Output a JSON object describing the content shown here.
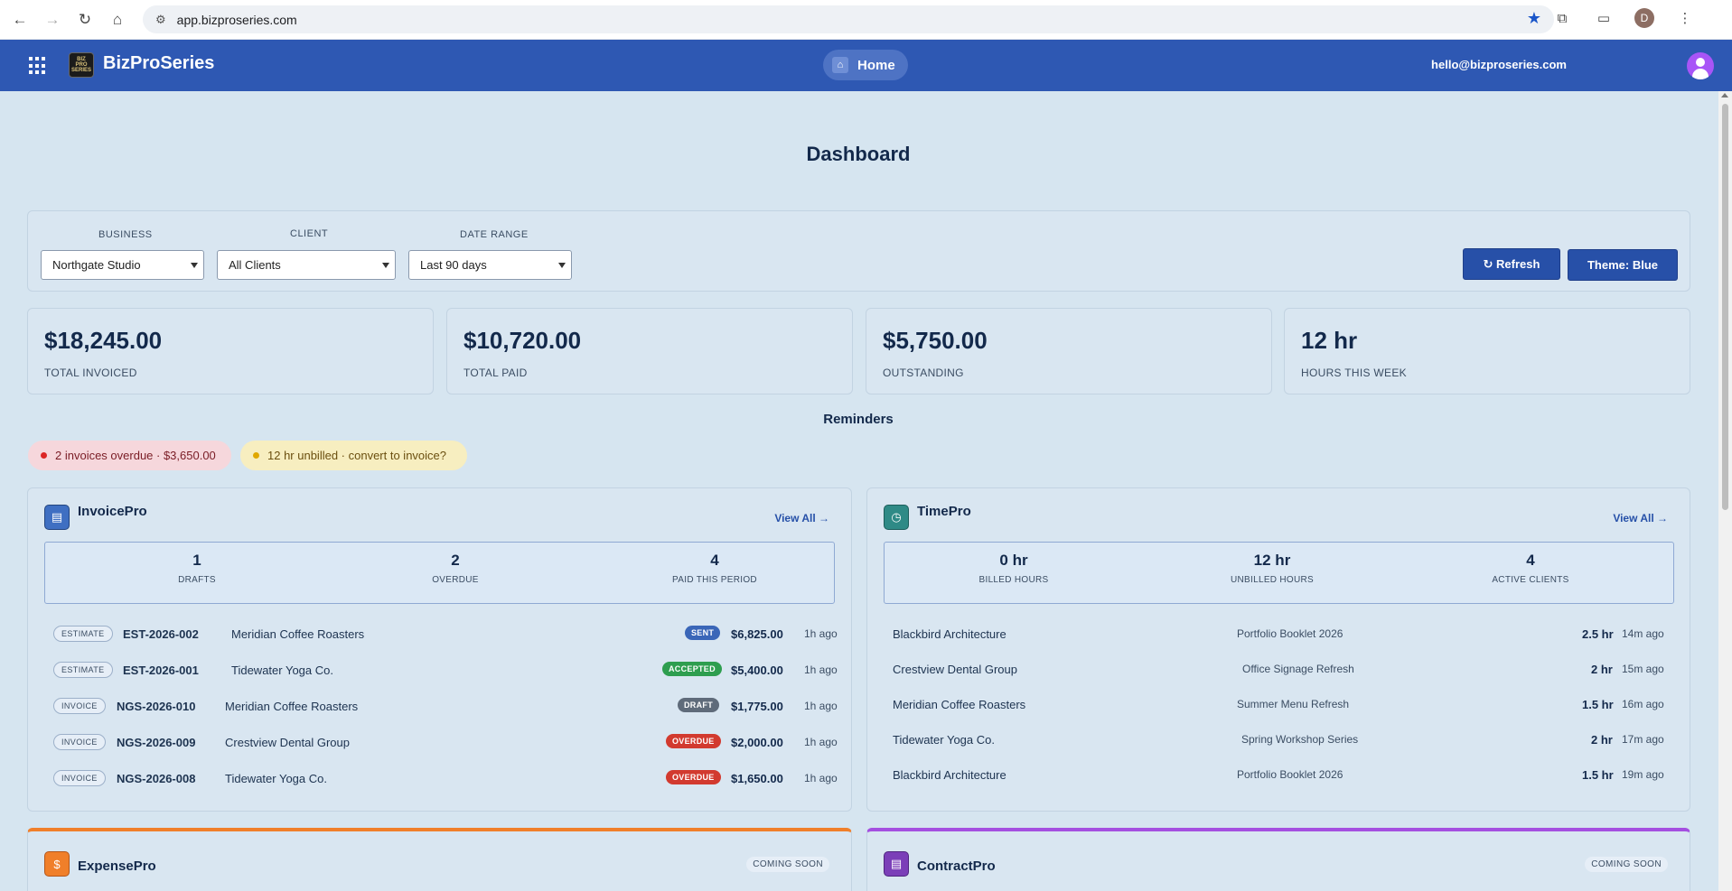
{
  "browser": {
    "url": "app.bizproseries.com",
    "profile_initial": "D"
  },
  "header": {
    "brand": "BizProSeries",
    "logo_text": "BIZ PRO SERIES",
    "home_label": "Home",
    "user_email": "hello@bizproseries.com"
  },
  "page": {
    "title": "Dashboard"
  },
  "filters": {
    "business_label": "BUSINESS",
    "business_value": "Northgate Studio",
    "client_label": "CLIENT",
    "client_value": "All Clients",
    "date_label": "DATE RANGE",
    "date_value": "Last 90 days",
    "refresh_label": "↻ Refresh",
    "theme_label": "Theme: Blue"
  },
  "stats": [
    {
      "value": "$18,245.00",
      "label": "TOTAL INVOICED"
    },
    {
      "value": "$10,720.00",
      "label": "TOTAL PAID"
    },
    {
      "value": "$5,750.00",
      "label": "OUTSTANDING"
    },
    {
      "value": "12 hr",
      "label": "HOURS THIS WEEK"
    }
  ],
  "reminders": {
    "title": "Reminders",
    "items": [
      {
        "text": "2 invoices overdue · $3,650.00"
      },
      {
        "text": "12 hr unbilled · convert to invoice?"
      }
    ]
  },
  "invoicepro": {
    "title": "InvoicePro",
    "view_all": "View All →",
    "summary": [
      {
        "num": "1",
        "cap": "DRAFTS"
      },
      {
        "num": "2",
        "cap": "OVERDUE"
      },
      {
        "num": "4",
        "cap": "PAID THIS PERIOD"
      }
    ],
    "rows": [
      {
        "type": "ESTIMATE",
        "id": "EST-2026-002",
        "client": "Meridian Coffee Roasters",
        "status": "SENT",
        "amount": "$6,825.00",
        "ago": "1h ago"
      },
      {
        "type": "ESTIMATE",
        "id": "EST-2026-001",
        "client": "Tidewater Yoga Co.",
        "status": "ACCEPTED",
        "amount": "$5,400.00",
        "ago": "1h ago"
      },
      {
        "type": "INVOICE",
        "id": "NGS-2026-010",
        "client": "Meridian Coffee Roasters",
        "status": "DRAFT",
        "amount": "$1,775.00",
        "ago": "1h ago"
      },
      {
        "type": "INVOICE",
        "id": "NGS-2026-009",
        "client": "Crestview Dental Group",
        "status": "OVERDUE",
        "amount": "$2,000.00",
        "ago": "1h ago"
      },
      {
        "type": "INVOICE",
        "id": "NGS-2026-008",
        "client": "Tidewater Yoga Co.",
        "status": "OVERDUE",
        "amount": "$1,650.00",
        "ago": "1h ago"
      }
    ]
  },
  "timepro": {
    "title": "TimePro",
    "view_all": "View All →",
    "summary": [
      {
        "num": "0 hr",
        "cap": "BILLED HOURS"
      },
      {
        "num": "12 hr",
        "cap": "UNBILLED HOURS"
      },
      {
        "num": "4",
        "cap": "ACTIVE CLIENTS"
      }
    ],
    "rows": [
      {
        "client": "Blackbird Architecture",
        "project": "Portfolio Booklet 2026",
        "hours": "2.5 hr",
        "ago": "14m ago"
      },
      {
        "client": "Crestview Dental Group",
        "project": "Office Signage Refresh",
        "hours": "2 hr",
        "ago": "15m ago"
      },
      {
        "client": "Meridian Coffee Roasters",
        "project": "Summer Menu Refresh",
        "hours": "1.5 hr",
        "ago": "16m ago"
      },
      {
        "client": "Tidewater Yoga Co.",
        "project": "Spring Workshop Series",
        "hours": "2 hr",
        "ago": "17m ago"
      },
      {
        "client": "Blackbird Architecture",
        "project": "Portfolio Booklet 2026",
        "hours": "1.5 hr",
        "ago": "19m ago"
      }
    ]
  },
  "expensepro": {
    "title": "ExpensePro",
    "badge": "COMING SOON"
  },
  "contractpro": {
    "title": "ContractPro",
    "badge": "COMING SOON"
  },
  "colors": {
    "header_blue": "#2e58b3",
    "status_sent": "#3a66b8",
    "status_accepted": "#2e9e4f",
    "status_draft": "#5f6b7a",
    "status_overdue": "#d23a2f",
    "expense_accent": "#f07f2a",
    "contract_accent": "#a44fe0"
  }
}
